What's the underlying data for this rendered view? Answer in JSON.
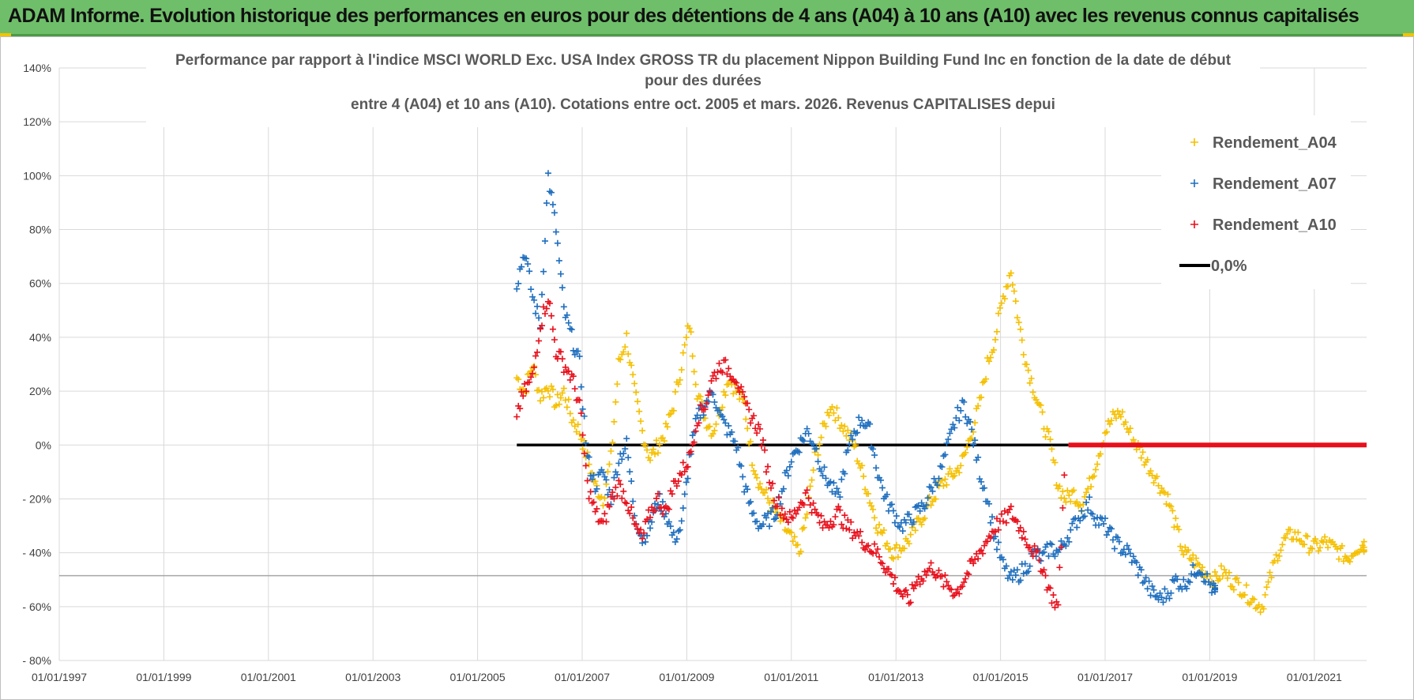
{
  "header": {
    "title": "ADAM Informe. Evolution historique des performances en euros pour des détentions de 4 ans (A04) à 10 ans (A10) avec les revenus connus capitalisés"
  },
  "colors": {
    "banner": "#6fbf6a",
    "a04": "#f5c000",
    "a07": "#1f6fbf",
    "a10": "#e8101c",
    "zero": "#000000",
    "grid": "#d9d9d9"
  },
  "chart_data": {
    "type": "scatter",
    "title_lines": [
      "Performance par rapport à l'indice MSCI WORLD Exc. USA Index GROSS TR  du placement Nippon Building Fund Inc en fonction de la date de début",
      "pour des durées",
      "entre 4 (A04) et 10 ans (A10). Cotations entre oct. 2005 et mars. 2026. Revenus CAPITALISES depui"
    ],
    "xlabel": "",
    "ylabel": "",
    "xlim": [
      1997.0,
      2022.0
    ],
    "ylim": [
      -80,
      140
    ],
    "yticks": [
      140,
      120,
      100,
      80,
      60,
      40,
      20,
      0,
      -20,
      -40,
      -60,
      -80
    ],
    "ytick_labels": [
      "140%",
      "120%",
      "100%",
      "80%",
      "60%",
      "40%",
      "20%",
      "0%",
      "- 20%",
      "- 40%",
      "- 60%",
      "- 80%"
    ],
    "xticks": [
      1997,
      1999,
      2001,
      2003,
      2005,
      2007,
      2009,
      2011,
      2013,
      2015,
      2017,
      2019,
      2021
    ],
    "xtick_labels": [
      "01/01/1997",
      "01/01/1999",
      "01/01/2001",
      "01/01/2003",
      "01/01/2005",
      "01/01/2007",
      "01/01/2009",
      "01/01/2011",
      "01/01/2013",
      "01/01/2015",
      "01/01/2017",
      "01/01/2019",
      "01/01/2021"
    ],
    "legend_position": "top-right",
    "series": [
      {
        "name": "Rendement_A04",
        "color": "#f5c000",
        "marker": "+",
        "x": [
          2005.75,
          2005.9,
          2006.05,
          2006.2,
          2006.35,
          2006.5,
          2006.65,
          2006.8,
          2006.95,
          2007.1,
          2007.25,
          2007.4,
          2007.55,
          2007.7,
          2007.85,
          2008.0,
          2008.15,
          2008.3,
          2008.45,
          2008.6,
          2008.75,
          2008.9,
          2009.05,
          2009.2,
          2009.35,
          2009.5,
          2009.65,
          2009.8,
          2009.95,
          2010.1,
          2010.25,
          2010.4,
          2010.55,
          2010.7,
          2010.85,
          2011.0,
          2011.15,
          2011.3,
          2011.45,
          2011.6,
          2011.75,
          2011.9,
          2012.05,
          2012.2,
          2012.35,
          2012.5,
          2012.65,
          2012.8,
          2012.95,
          2013.1,
          2013.25,
          2013.4,
          2013.55,
          2013.7,
          2013.85,
          2014.0,
          2014.15,
          2014.3,
          2014.45,
          2014.6,
          2014.75,
          2014.9,
          2015.05,
          2015.2,
          2015.35,
          2015.5,
          2015.65,
          2015.8,
          2015.95,
          2016.1,
          2016.25,
          2016.4,
          2016.55,
          2016.7,
          2016.85,
          2017.0,
          2017.15,
          2017.3,
          2017.45,
          2017.6,
          2017.75,
          2017.9,
          2018.05,
          2018.2,
          2018.35,
          2018.5,
          2018.65,
          2018.8,
          2018.95,
          2019.1,
          2019.25,
          2019.4,
          2019.55,
          2019.7,
          2019.85,
          2020.0,
          2020.15,
          2020.3,
          2020.45,
          2020.6,
          2020.75,
          2020.9,
          2021.05,
          2021.2,
          2021.35,
          2021.5,
          2021.65,
          2021.8,
          2021.95
        ],
        "y": [
          25,
          20,
          30,
          18,
          22,
          15,
          20,
          10,
          5,
          -5,
          -15,
          -20,
          -5,
          30,
          40,
          20,
          5,
          -5,
          0,
          5,
          15,
          30,
          45,
          20,
          10,
          5,
          15,
          25,
          20,
          15,
          -5,
          -15,
          -20,
          -25,
          -30,
          -35,
          -40,
          -25,
          -5,
          5,
          15,
          10,
          5,
          0,
          -10,
          -20,
          -30,
          -35,
          -40,
          -38,
          -35,
          -30,
          -25,
          -20,
          -15,
          -12,
          -10,
          -5,
          5,
          15,
          30,
          40,
          55,
          65,
          45,
          30,
          20,
          10,
          0,
          -15,
          -20,
          -18,
          -22,
          -15,
          -5,
          5,
          10,
          12,
          5,
          0,
          -5,
          -10,
          -15,
          -20,
          -30,
          -40,
          -42,
          -45,
          -48,
          -50,
          -47,
          -50,
          -52,
          -55,
          -58,
          -60,
          -50,
          -40,
          -35,
          -33,
          -35,
          -37,
          -38,
          -36,
          -38,
          -40,
          -42,
          -38,
          -37
        ]
      },
      {
        "name": "Rendement_A07",
        "color": "#1f6fbf",
        "marker": "+",
        "x": [
          2005.75,
          2005.9,
          2006.05,
          2006.2,
          2006.35,
          2006.5,
          2006.65,
          2006.8,
          2006.95,
          2007.1,
          2007.25,
          2007.4,
          2007.55,
          2007.7,
          2007.85,
          2008.0,
          2008.15,
          2008.3,
          2008.45,
          2008.6,
          2008.75,
          2008.9,
          2009.05,
          2009.2,
          2009.35,
          2009.5,
          2009.65,
          2009.8,
          2009.95,
          2010.1,
          2010.25,
          2010.4,
          2010.55,
          2010.7,
          2010.85,
          2011.0,
          2011.15,
          2011.3,
          2011.45,
          2011.6,
          2011.75,
          2011.9,
          2012.05,
          2012.2,
          2012.35,
          2012.5,
          2012.65,
          2012.8,
          2012.95,
          2013.1,
          2013.25,
          2013.4,
          2013.55,
          2013.7,
          2013.85,
          2014.0,
          2014.15,
          2014.3,
          2014.45,
          2014.6,
          2014.75,
          2014.9,
          2015.05,
          2015.2,
          2015.35,
          2015.5,
          2015.65,
          2015.8,
          2015.95,
          2016.1,
          2016.25,
          2016.4,
          2016.55,
          2016.7,
          2016.85,
          2017.0,
          2017.15,
          2017.3,
          2017.45,
          2017.6,
          2017.75,
          2017.9,
          2018.05,
          2018.2,
          2018.35,
          2018.5,
          2018.65,
          2018.8,
          2018.95,
          2019.1
        ],
        "y": [
          60,
          72,
          55,
          45,
          100,
          80,
          50,
          40,
          30,
          -5,
          -15,
          -10,
          -20,
          -5,
          0,
          -25,
          -35,
          -30,
          -20,
          -25,
          -35,
          -30,
          -5,
          10,
          15,
          20,
          10,
          5,
          0,
          -15,
          -25,
          -30,
          -28,
          -25,
          -15,
          -5,
          0,
          5,
          0,
          -10,
          -15,
          -20,
          -5,
          5,
          10,
          5,
          -10,
          -20,
          -25,
          -30,
          -28,
          -25,
          -22,
          -15,
          -10,
          0,
          10,
          15,
          5,
          -10,
          -20,
          -35,
          -45,
          -50,
          -48,
          -45,
          -40,
          -42,
          -38,
          -40,
          -35,
          -30,
          -25,
          -22,
          -28,
          -30,
          -35,
          -38,
          -40,
          -45,
          -50,
          -55,
          -57,
          -55,
          -50,
          -52,
          -48,
          -45,
          -50,
          -55
        ],
        "x_note": "values end early 2019"
      },
      {
        "name": "Rendement_A10",
        "color": "#e8101c",
        "marker": "+",
        "x": [
          2005.75,
          2005.9,
          2006.05,
          2006.2,
          2006.35,
          2006.5,
          2006.65,
          2006.8,
          2006.95,
          2007.1,
          2007.25,
          2007.4,
          2007.55,
          2007.7,
          2007.85,
          2008.0,
          2008.15,
          2008.3,
          2008.45,
          2008.6,
          2008.75,
          2008.9,
          2009.05,
          2009.2,
          2009.35,
          2009.5,
          2009.65,
          2009.8,
          2009.95,
          2010.1,
          2010.25,
          2010.4,
          2010.55,
          2010.7,
          2010.85,
          2011.0,
          2011.15,
          2011.3,
          2011.45,
          2011.6,
          2011.75,
          2011.9,
          2012.05,
          2012.2,
          2012.35,
          2012.5,
          2012.65,
          2012.8,
          2012.95,
          2013.1,
          2013.25,
          2013.4,
          2013.55,
          2013.7,
          2013.85,
          2014.0,
          2014.15,
          2014.3,
          2014.45,
          2014.6,
          2014.75,
          2014.9,
          2015.05,
          2015.2,
          2015.35,
          2015.5,
          2015.65,
          2015.8,
          2015.95,
          2016.1,
          2016.25
        ],
        "y": [
          12,
          20,
          25,
          45,
          55,
          35,
          30,
          25,
          15,
          -15,
          -25,
          -30,
          -20,
          -15,
          -20,
          -30,
          -35,
          -25,
          -20,
          -25,
          -15,
          -10,
          -5,
          10,
          15,
          25,
          30,
          28,
          25,
          15,
          10,
          5,
          -10,
          -20,
          -25,
          -28,
          -22,
          -18,
          -25,
          -30,
          -28,
          -25,
          -30,
          -32,
          -35,
          -38,
          -40,
          -45,
          -50,
          -55,
          -58,
          -50,
          -48,
          -45,
          -50,
          -52,
          -55,
          -50,
          -45,
          -40,
          -35,
          -30,
          -28,
          -25,
          -30,
          -35,
          -40,
          -45,
          -55,
          -60,
          0
        ],
        "zero_segment": [
          2016.3,
          2022.0
        ]
      },
      {
        "name": "0,0%",
        "color": "#000000",
        "type": "line",
        "x": [
          2005.75,
          2016.3
        ],
        "y": [
          0,
          0
        ]
      }
    ]
  }
}
